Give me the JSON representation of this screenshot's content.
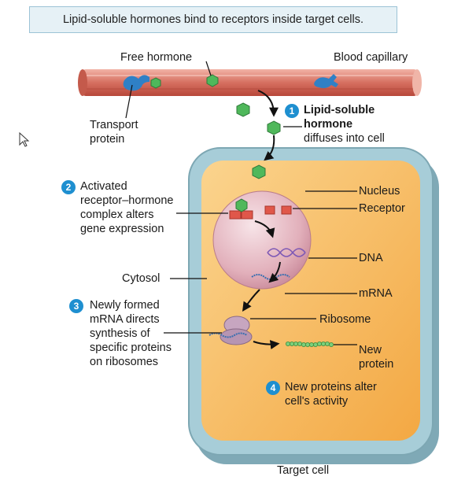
{
  "caption": "Lipid-soluble hormones bind to receptors inside target cells.",
  "labels": {
    "free_hormone": "Free hormone",
    "blood_capillary": "Blood capillary",
    "transport_protein_1": "Transport",
    "transport_protein_2": "protein",
    "step1_line1": "Lipid-soluble",
    "step1_line2": "hormone",
    "step1_line3": "diffuses into cell",
    "step2_line1": "Activated",
    "step2_line2": "receptor–hormone",
    "step2_line3": "complex alters",
    "step2_line4": "gene expression",
    "nucleus": "Nucleus",
    "receptor": "Receptor",
    "dna": "DNA",
    "cytosol": "Cytosol",
    "mrna": "mRNA",
    "step3_line1": "Newly formed",
    "step3_line2": "mRNA directs",
    "step3_line3": "synthesis of",
    "step3_line4": "specific proteins",
    "step3_line5": "on ribosomes",
    "ribosome": "Ribosome",
    "new_protein_1": "New",
    "new_protein_2": "protein",
    "step4_line1": "New proteins alter",
    "step4_line2": "cell's activity",
    "target_cell": "Target cell"
  },
  "steps": [
    "1",
    "2",
    "3",
    "4"
  ],
  "colors": {
    "step_badge": "#1e8fd0",
    "capillary": "#d9796b",
    "cell_membrane": "#8fb8c4",
    "cytoplasm": "#f6b75a",
    "nucleus": "#e7bcc4",
    "hormone": "#4fb85b",
    "receptor": "#e0574a"
  }
}
